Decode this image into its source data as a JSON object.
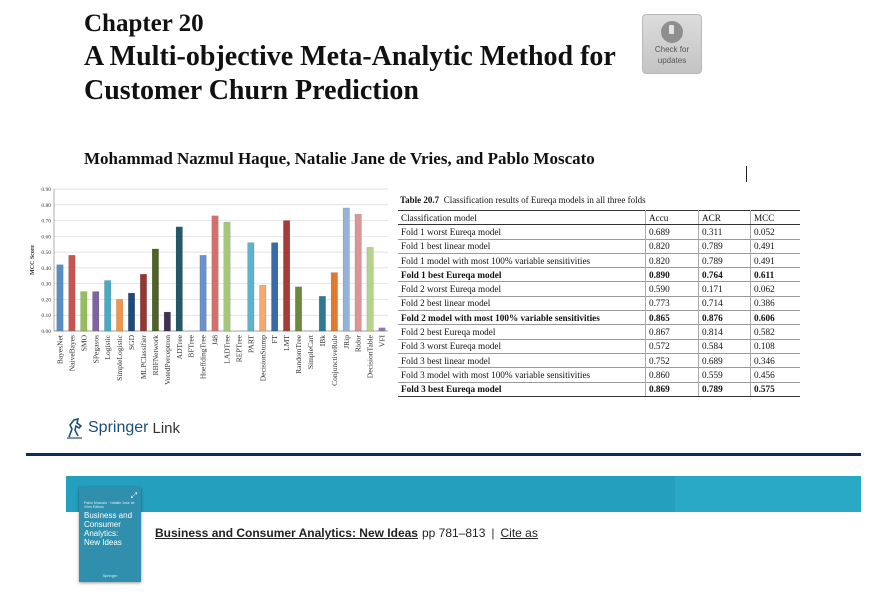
{
  "chapter": {
    "number": "Chapter 20",
    "title": "A Multi-objective Meta-Analytic Method for Customer Churn Prediction",
    "authors": "Mohammad Nazmul Haque, Natalie Jane de Vries, and Pablo Moscato"
  },
  "check_updates": {
    "line1": "Check for",
    "line2": "updates"
  },
  "chart_data": {
    "type": "bar",
    "ylabel": "MCC Score",
    "ylim": [
      0,
      0.9
    ],
    "yticks": [
      "0.00",
      "0.10",
      "0.20",
      "0.30",
      "0.40",
      "0.50",
      "0.60",
      "0.70",
      "0.80",
      "0.90"
    ],
    "categories": [
      "BayesNet",
      "NaiveBayes",
      "SMO",
      "SPegasos",
      "Logistic",
      "SimpleLogistic",
      "SGD",
      "MLPClassifier",
      "RBFNetwork",
      "VotedPerceptron",
      "ADTree",
      "BFTree",
      "HoeffdingTree",
      "J48",
      "LADTree",
      "REPTree",
      "PART",
      "DecisionStump",
      "FT",
      "LMT",
      "RandomTree",
      "SimpleCart",
      "IBk",
      "ConjunctiveRule",
      "JRip",
      "Ridor",
      "DecisionTable",
      "VFI"
    ],
    "values": [
      0.42,
      0.48,
      0.25,
      0.25,
      0.32,
      0.2,
      0.24,
      0.36,
      0.52,
      0.12,
      0.66,
      0.0,
      0.48,
      0.73,
      0.69,
      0.0,
      0.56,
      0.29,
      0.56,
      0.7,
      0.28,
      0.0,
      0.22,
      0.37,
      0.78,
      0.74,
      0.53,
      0.02
    ],
    "colors": [
      "#5b8fc4",
      "#c9534e",
      "#94be5a",
      "#8064a2",
      "#4ba9c4",
      "#f4934a",
      "#1f497d",
      "#953735",
      "#4f6228",
      "#3f3151",
      "#215968",
      "#8eb4e3",
      "#6a92c8",
      "#d2706c",
      "#a4c77a",
      "#a48fc0",
      "#5fb2cc",
      "#f6a86e",
      "#3b6aa8",
      "#a63c38",
      "#6b8a3c",
      "#5c4a80",
      "#2e7890",
      "#e07a2c",
      "#95b3d7",
      "#d99694",
      "#b5d38b",
      "#8f7bb5"
    ]
  },
  "table": {
    "caption_label": "Table 20.7",
    "caption_text": "Classification results of Eureqa models in all three folds",
    "headers": [
      "Classification model",
      "Accu",
      "ACR",
      "MCC"
    ],
    "rows": [
      {
        "model": "Fold 1 worst Eureqa model",
        "accu": "0.689",
        "acr": "0.311",
        "mcc": "0.052",
        "bold": false
      },
      {
        "model": "Fold 1 best linear model",
        "accu": "0.820",
        "acr": "0.789",
        "mcc": "0.491",
        "bold": false
      },
      {
        "model": "Fold 1 model with most 100% variable sensitivities",
        "accu": "0.820",
        "acr": "0.789",
        "mcc": "0.491",
        "bold": false
      },
      {
        "model": "Fold 1 best Eureqa model",
        "accu": "0.890",
        "acr": "0.764",
        "mcc": "0.611",
        "bold": true
      },
      {
        "model": "Fold 2 worst Eureqa model",
        "accu": "0.590",
        "acr": "0.171",
        "mcc": "0.062",
        "bold": false
      },
      {
        "model": "Fold 2 best linear model",
        "accu": "0.773",
        "acr": "0.714",
        "mcc": "0.386",
        "bold": false
      },
      {
        "model": "Fold 2 model with most 100% variable sensitivities",
        "accu": "0.865",
        "acr": "0.876",
        "mcc": "0.606",
        "bold": true
      },
      {
        "model": "Fold 2 best Eureqa model",
        "accu": "0.867",
        "acr": "0.814",
        "mcc": "0.582",
        "bold": false
      },
      {
        "model": "Fold 3 worst Eureqa model",
        "accu": "0.572",
        "acr": "0.584",
        "mcc": "0.108",
        "bold": false
      },
      {
        "model": "Fold 3 best linear model",
        "accu": "0.752",
        "acr": "0.689",
        "mcc": "0.346",
        "bold": false
      },
      {
        "model": "Fold 3 model with most 100% variable sensitivities",
        "accu": "0.860",
        "acr": "0.559",
        "mcc": "0.456",
        "bold": false
      },
      {
        "model": "Fold 3 best Eureqa model",
        "accu": "0.869",
        "acr": "0.789",
        "mcc": "0.575",
        "bold": true
      }
    ]
  },
  "springer": {
    "brand": "Springer",
    "link": "Link"
  },
  "book": {
    "cover_top": "Pablo Moscato · Natalie Jane de Vries Editors",
    "cover_title": "Business and Consumer Analytics: New Ideas",
    "cover_publisher": "Springer",
    "title": "Business and Consumer Analytics: New Ideas",
    "pages": "pp 781–813",
    "separator": "|",
    "cite": "Cite as"
  },
  "colors": {
    "banner": "#24a0be",
    "rule": "#0d2e4f",
    "springer_blue": "#1a4f7a"
  }
}
